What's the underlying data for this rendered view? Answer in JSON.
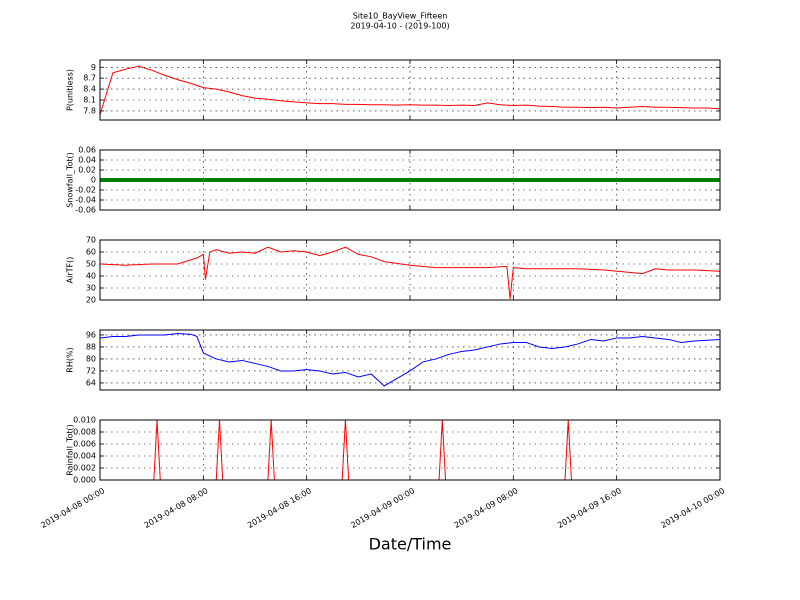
{
  "chart_data": [
    {
      "type": "line",
      "title": "Site10_BayView_Fifteen",
      "subtitle": "2019-04-10 - (2019-100)",
      "ylabel": "P(unitless)",
      "color": "#ff0000",
      "ylim": [
        7.55,
        9.2
      ],
      "yticks": [
        7.8,
        8.1,
        8.4,
        8.7,
        9.0
      ],
      "grid": true,
      "x": [
        "2019-04-08 00:00",
        "2019-04-08 01:00",
        "2019-04-08 02:00",
        "2019-04-08 03:00",
        "2019-04-08 04:00",
        "2019-04-08 05:00",
        "2019-04-08 06:00",
        "2019-04-08 07:00",
        "2019-04-08 08:00",
        "2019-04-08 09:00",
        "2019-04-08 10:00",
        "2019-04-08 11:00",
        "2019-04-08 12:00",
        "2019-04-08 13:00",
        "2019-04-08 14:00",
        "2019-04-08 15:00",
        "2019-04-08 16:00",
        "2019-04-08 17:00",
        "2019-04-08 18:00",
        "2019-04-08 19:00",
        "2019-04-08 20:00",
        "2019-04-08 21:00",
        "2019-04-08 22:00",
        "2019-04-08 23:00",
        "2019-04-09 00:00",
        "2019-04-09 01:00",
        "2019-04-09 02:00",
        "2019-04-09 03:00",
        "2019-04-09 04:00",
        "2019-04-09 05:00",
        "2019-04-09 06:00",
        "2019-04-09 07:00",
        "2019-04-09 08:00",
        "2019-04-09 09:00",
        "2019-04-09 10:00",
        "2019-04-09 11:00",
        "2019-04-09 12:00",
        "2019-04-09 13:00",
        "2019-04-09 14:00",
        "2019-04-09 15:00",
        "2019-04-09 16:00",
        "2019-04-09 17:00",
        "2019-04-09 18:00",
        "2019-04-09 19:00",
        "2019-04-09 20:00",
        "2019-04-09 21:00",
        "2019-04-09 22:00",
        "2019-04-09 23:00",
        "2019-04-10 00:00"
      ],
      "values": [
        7.7,
        8.85,
        8.95,
        9.03,
        8.92,
        8.78,
        8.66,
        8.56,
        8.44,
        8.4,
        8.32,
        8.22,
        8.15,
        8.12,
        8.08,
        8.05,
        8.02,
        8.0,
        8.0,
        7.98,
        7.98,
        7.97,
        7.97,
        7.96,
        7.97,
        7.96,
        7.96,
        7.95,
        7.96,
        7.95,
        8.02,
        7.97,
        7.95,
        7.96,
        7.93,
        7.92,
        7.9,
        7.9,
        7.89,
        7.9,
        7.88,
        7.9,
        7.92,
        7.9,
        7.9,
        7.89,
        7.88,
        7.88,
        7.86
      ]
    },
    {
      "type": "line",
      "ylabel": "Snowfall_Tot()",
      "color": "#008000",
      "ylim": [
        -0.06,
        0.06
      ],
      "yticks": [
        -0.06,
        -0.04,
        -0.02,
        0.0,
        0.02,
        0.04,
        0.06
      ],
      "grid": true,
      "x": [
        "2019-04-08 00:00",
        "2019-04-08 02:00",
        "2019-04-08 04:00",
        "2019-04-08 06:00",
        "2019-04-08 08:00",
        "2019-04-08 10:00",
        "2019-04-08 12:00",
        "2019-04-08 14:00",
        "2019-04-08 16:00",
        "2019-04-08 18:00",
        "2019-04-08 20:00",
        "2019-04-08 22:00",
        "2019-04-09 00:00",
        "2019-04-09 02:00",
        "2019-04-09 04:00",
        "2019-04-09 06:00",
        "2019-04-09 08:00",
        "2019-04-09 10:00",
        "2019-04-09 12:00",
        "2019-04-09 14:00",
        "2019-04-09 16:00",
        "2019-04-09 18:00",
        "2019-04-09 20:00",
        "2019-04-09 22:00",
        "2019-04-10 00:00"
      ],
      "values": [
        0,
        0,
        0,
        0,
        0,
        0,
        0,
        0,
        0,
        0,
        0,
        0,
        0,
        0,
        0,
        0,
        0,
        0,
        0,
        0,
        0,
        0,
        0,
        0,
        0
      ]
    },
    {
      "type": "line",
      "ylabel": "AirTF()",
      "color": "#ff0000",
      "ylim": [
        20,
        70
      ],
      "yticks": [
        20,
        30,
        40,
        50,
        60,
        70
      ],
      "grid": true,
      "x": [
        "2019-04-08 00:00",
        "2019-04-08 02:00",
        "2019-04-08 04:00",
        "2019-04-08 06:00",
        "2019-04-08 07:30",
        "2019-04-08 08:00",
        "2019-04-08 08:10",
        "2019-04-08 08:30",
        "2019-04-08 09:00",
        "2019-04-08 10:00",
        "2019-04-08 11:00",
        "2019-04-08 12:00",
        "2019-04-08 13:00",
        "2019-04-08 14:00",
        "2019-04-08 15:00",
        "2019-04-08 16:00",
        "2019-04-08 17:00",
        "2019-04-08 18:00",
        "2019-04-08 19:00",
        "2019-04-08 20:00",
        "2019-04-08 21:00",
        "2019-04-08 22:00",
        "2019-04-09 00:00",
        "2019-04-09 02:00",
        "2019-04-09 04:00",
        "2019-04-09 06:00",
        "2019-04-09 07:30",
        "2019-04-09 07:45",
        "2019-04-09 08:00",
        "2019-04-09 09:00",
        "2019-04-09 11:00",
        "2019-04-09 13:00",
        "2019-04-09 15:00",
        "2019-04-09 17:00",
        "2019-04-09 18:00",
        "2019-04-09 19:00",
        "2019-04-09 20:00",
        "2019-04-09 22:00",
        "2019-04-10 00:00"
      ],
      "values": [
        50,
        49,
        50,
        50,
        55,
        58,
        37,
        60,
        62,
        59,
        60,
        59,
        64,
        60,
        61,
        60,
        57,
        60,
        64,
        58,
        56,
        52,
        49,
        47,
        47,
        47,
        48,
        21,
        47,
        46,
        46,
        46,
        45,
        43,
        42,
        46,
        45,
        45,
        44
      ]
    },
    {
      "type": "line",
      "ylabel": "RH(%)",
      "color": "#0000ff",
      "ylim": [
        59.3,
        99.3
      ],
      "yticks": [
        64,
        72,
        80,
        88,
        96
      ],
      "grid": true,
      "x": [
        "2019-04-08 00:00",
        "2019-04-08 01:00",
        "2019-04-08 02:00",
        "2019-04-08 03:00",
        "2019-04-08 04:00",
        "2019-04-08 05:00",
        "2019-04-08 06:00",
        "2019-04-08 07:00",
        "2019-04-08 07:30",
        "2019-04-08 08:00",
        "2019-04-08 09:00",
        "2019-04-08 10:00",
        "2019-04-08 11:00",
        "2019-04-08 12:00",
        "2019-04-08 13:00",
        "2019-04-08 14:00",
        "2019-04-08 15:00",
        "2019-04-08 16:00",
        "2019-04-08 17:00",
        "2019-04-08 18:00",
        "2019-04-08 19:00",
        "2019-04-08 20:00",
        "2019-04-08 21:00",
        "2019-04-08 22:00",
        "2019-04-08 23:00",
        "2019-04-09 00:00",
        "2019-04-09 01:00",
        "2019-04-09 02:00",
        "2019-04-09 03:00",
        "2019-04-09 04:00",
        "2019-04-09 05:00",
        "2019-04-09 06:00",
        "2019-04-09 07:00",
        "2019-04-09 08:00",
        "2019-04-09 09:00",
        "2019-04-09 10:00",
        "2019-04-09 11:00",
        "2019-04-09 12:00",
        "2019-04-09 13:00",
        "2019-04-09 14:00",
        "2019-04-09 15:00",
        "2019-04-09 16:00",
        "2019-04-09 17:00",
        "2019-04-09 18:00",
        "2019-04-09 19:00",
        "2019-04-09 20:00",
        "2019-04-09 21:00",
        "2019-04-09 22:00",
        "2019-04-10 00:00"
      ],
      "values": [
        94,
        95,
        95,
        96,
        96,
        96,
        97,
        96.5,
        95,
        84,
        80,
        78,
        79,
        77,
        75,
        72,
        72,
        73,
        72,
        70,
        71,
        68,
        70,
        62,
        67,
        72,
        78,
        80,
        83,
        85,
        86,
        88,
        90,
        91,
        91,
        88,
        87,
        88,
        90,
        93,
        92,
        94,
        94,
        95,
        94,
        93,
        91,
        92,
        93
      ]
    },
    {
      "type": "line",
      "ylabel": "Rainfall_Tot()",
      "xlabel": "Date/Time",
      "color": "#ff0000",
      "ylim": [
        0,
        0.01
      ],
      "yticks": [
        {
          "value": 0,
          "label": "0.000"
        },
        {
          "value": 0.002,
          "label": "0.002"
        },
        {
          "value": 0.004,
          "label": "0.004"
        },
        {
          "value": 0.006,
          "label": "0.006"
        },
        {
          "value": 0.008,
          "label": "0.008"
        },
        {
          "value": 0.01,
          "label": "0.010"
        }
      ],
      "grid": true,
      "xlim": [
        "2019-04-08 00:00",
        "2019-04-10 00:00"
      ],
      "xticks": [
        "2019-04-08 00:00",
        "2019-04-08 08:00",
        "2019-04-08 16:00",
        "2019-04-09 00:00",
        "2019-04-09 08:00",
        "2019-04-09 16:00",
        "2019-04-10 00:00"
      ],
      "x": [
        "2019-04-08 00:00",
        "2019-04-08 04:10",
        "2019-04-08 04:25",
        "2019-04-08 04:40",
        "2019-04-08 09:00",
        "2019-04-08 09:15",
        "2019-04-08 09:30",
        "2019-04-08 13:00",
        "2019-04-08 13:15",
        "2019-04-08 13:30",
        "2019-04-08 18:45",
        "2019-04-08 19:00",
        "2019-04-08 19:15",
        "2019-04-09 02:15",
        "2019-04-09 02:30",
        "2019-04-09 02:45",
        "2019-04-09 12:00",
        "2019-04-09 12:15",
        "2019-04-09 12:30",
        "2019-04-10 00:00"
      ],
      "values": [
        0,
        0,
        0.01,
        0,
        0,
        0.01,
        0,
        0,
        0.01,
        0,
        0,
        0.01,
        0,
        0,
        0.01,
        0,
        0,
        0.01,
        0,
        0
      ]
    }
  ]
}
